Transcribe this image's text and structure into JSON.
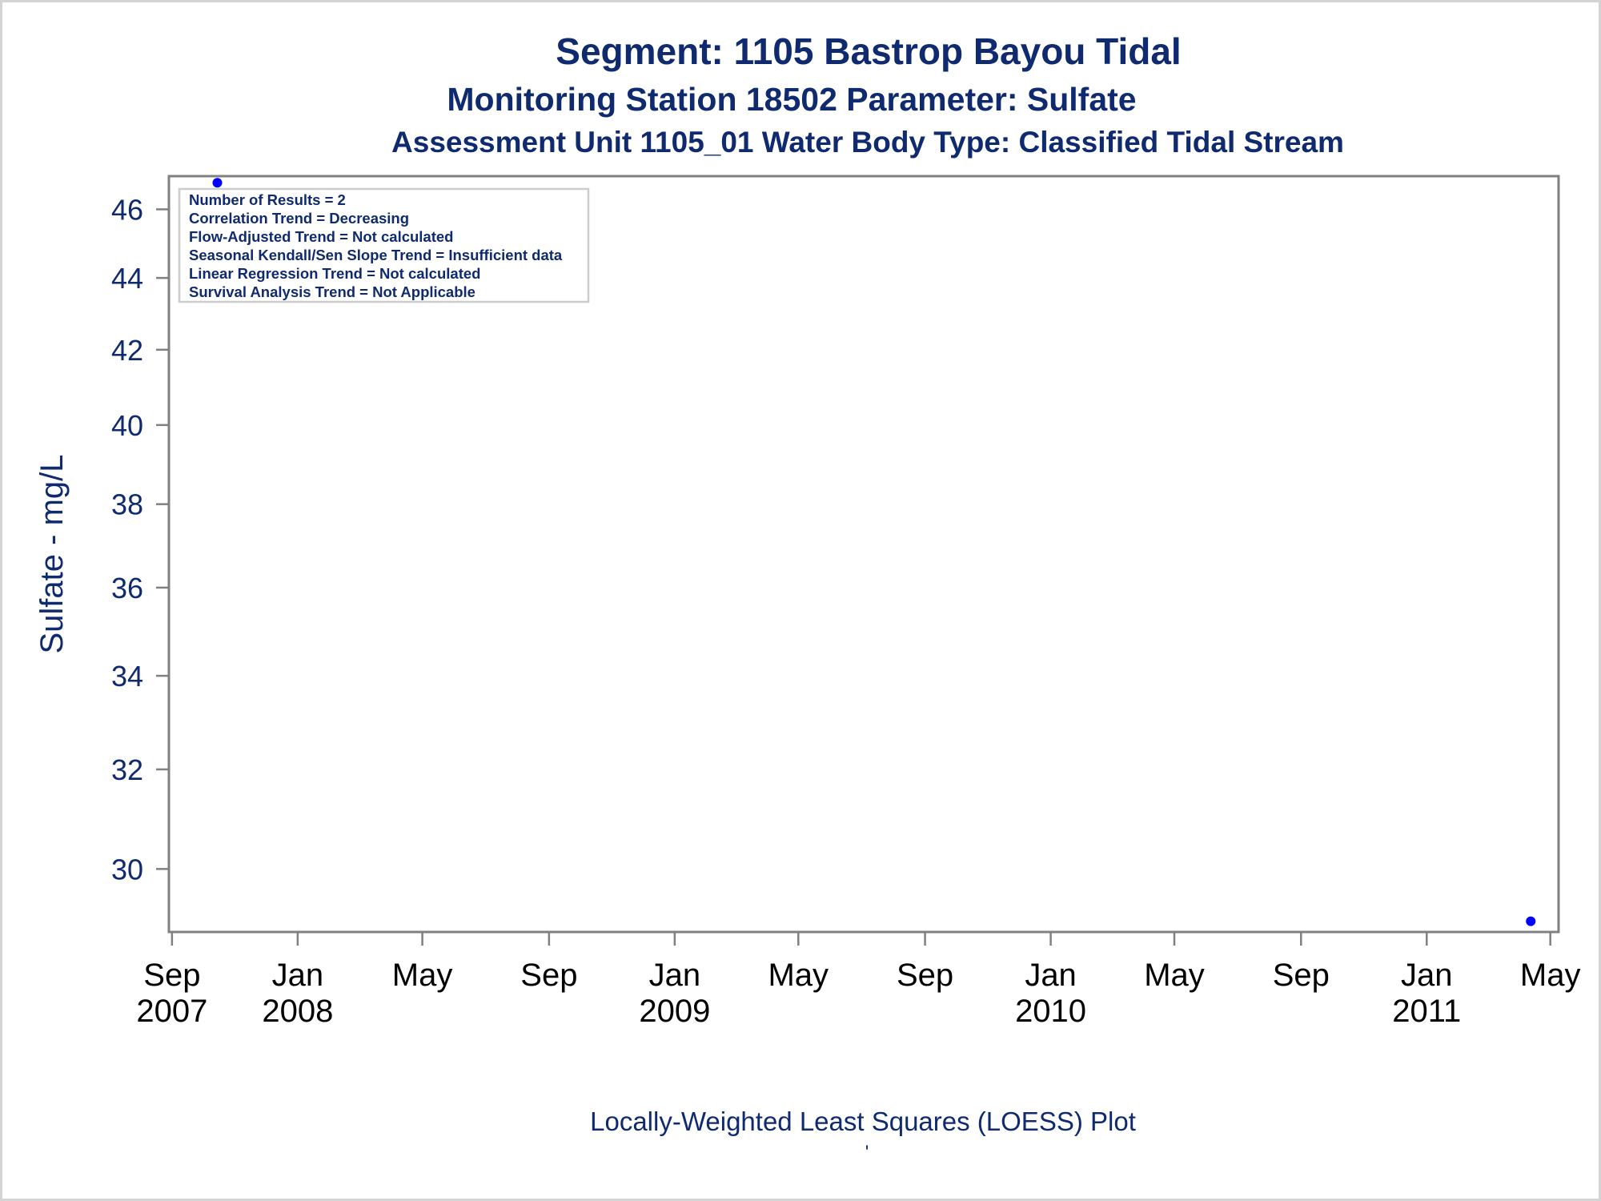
{
  "colors": {
    "text": "#0f2a6e",
    "axis": "#808080",
    "frame": "#d4d4d4",
    "marker": "#0000ff"
  },
  "chart_data": {
    "type": "scatter",
    "title": "Segment: 1105  Bastrop Bayou Tidal",
    "subtitle": "Monitoring Station 18502 Parameter: Sulfate",
    "subtitle2": "Assessment Unit 1105_01   Water Body Type: Classified Tidal Stream",
    "xlabel": "Locally-Weighted Least Squares (LOESS) Plot",
    "footnote": "'",
    "ylabel": "Sulfate - mg/L",
    "y_scale": "log",
    "ylim": [
      28.8,
      47.0
    ],
    "yticks": [
      30,
      32,
      34,
      36,
      38,
      40,
      42,
      44,
      46
    ],
    "xlim": [
      "2007-08-29",
      "2011-05-09"
    ],
    "xticks": [
      {
        "date": "2007-09-01",
        "line1": "Sep",
        "line2": "2007"
      },
      {
        "date": "2008-01-01",
        "line1": "Jan",
        "line2": "2008"
      },
      {
        "date": "2008-05-01",
        "line1": "May",
        "line2": ""
      },
      {
        "date": "2008-09-01",
        "line1": "Sep",
        "line2": ""
      },
      {
        "date": "2009-01-01",
        "line1": "Jan",
        "line2": "2009"
      },
      {
        "date": "2009-05-01",
        "line1": "May",
        "line2": ""
      },
      {
        "date": "2009-09-01",
        "line1": "Sep",
        "line2": ""
      },
      {
        "date": "2010-01-01",
        "line1": "Jan",
        "line2": "2010"
      },
      {
        "date": "2010-05-01",
        "line1": "May",
        "line2": ""
      },
      {
        "date": "2010-09-01",
        "line1": "Sep",
        "line2": ""
      },
      {
        "date": "2011-01-01",
        "line1": "Jan",
        "line2": "2011"
      },
      {
        "date": "2011-05-01",
        "line1": "May",
        "line2": ""
      }
    ],
    "series": [
      {
        "points": [
          {
            "x": "2007-10-15",
            "y": 46.8
          },
          {
            "x": "2011-04-12",
            "y": 29.0
          }
        ]
      }
    ],
    "legend_position": "top-left",
    "grid": false,
    "info_box": [
      "Number of Results = 2",
      "Correlation Trend = Decreasing",
      "Flow-Adjusted Trend = Not calculated",
      "Seasonal Kendall/Sen Slope Trend = Insufficient data",
      "Linear Regression Trend = Not calculated",
      "Survival Analysis Trend = Not Applicable"
    ]
  }
}
